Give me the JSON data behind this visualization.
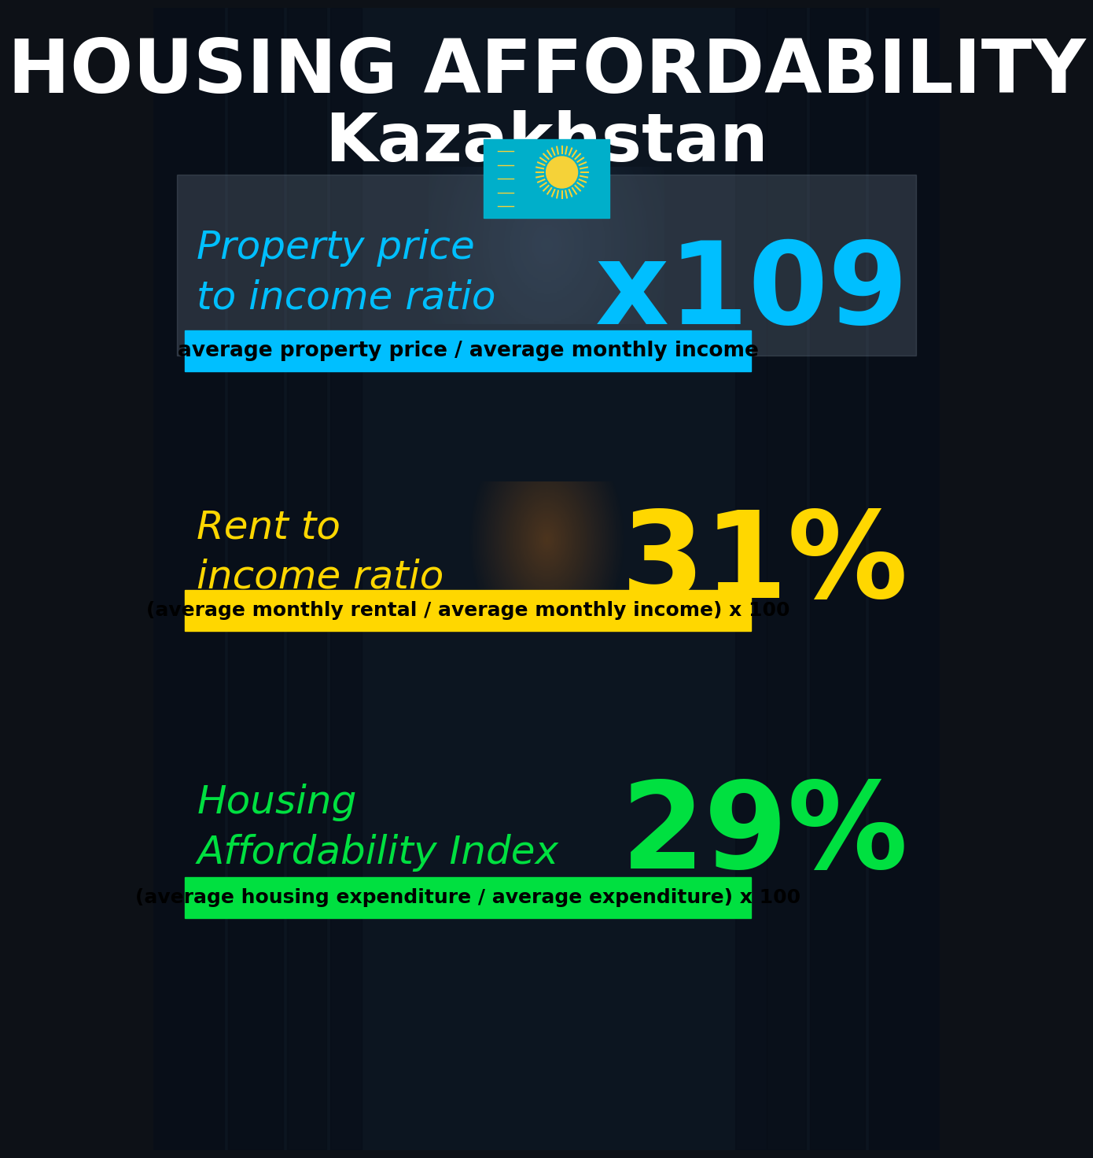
{
  "title_line1": "HOUSING AFFORDABILITY",
  "title_line2": "Kazakhstan",
  "bg_color": "#0d1117",
  "title1_color": "#ffffff",
  "title2_color": "#ffffff",
  "section1_label": "Property price\nto income ratio",
  "section1_value": "x109",
  "section1_label_color": "#00bfff",
  "section1_value_color": "#00bfff",
  "section1_banner_text": "average property price / average monthly income",
  "section1_banner_bg": "#00bfff",
  "section1_banner_text_color": "#000000",
  "section2_label": "Rent to\nincome ratio",
  "section2_value": "31%",
  "section2_label_color": "#ffd700",
  "section2_value_color": "#ffd700",
  "section2_banner_text": "(average monthly rental / average monthly income) x 100",
  "section2_banner_bg": "#ffd700",
  "section2_banner_text_color": "#000000",
  "section3_label": "Housing\nAffordability Index",
  "section3_value": "29%",
  "section3_label_color": "#00e040",
  "section3_value_color": "#00e040",
  "section3_banner_text": "(average housing expenditure / average expenditure) x 100",
  "section3_banner_bg": "#00e040",
  "section3_banner_text_color": "#000000",
  "fig_width": 10.0,
  "fig_height": 14.52
}
